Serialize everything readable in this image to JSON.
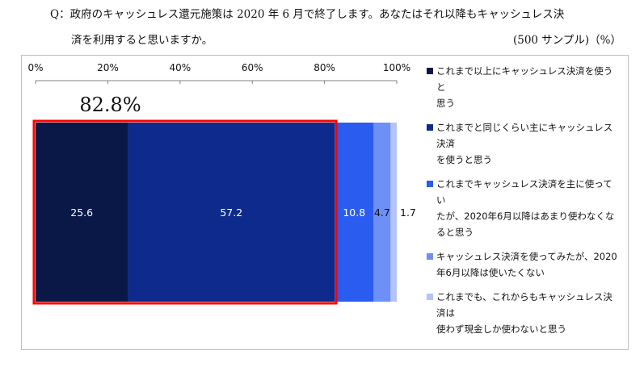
{
  "question": {
    "line1": "Q：政府のキャッシュレス還元施策は 2020 年 6 月で終了します。あなたはそれ以降もキャッシュレス決",
    "line2": "済を利用すると思いますか。",
    "sample_note": "(500 サンプル)（%）"
  },
  "highlight": {
    "label": "82.8%",
    "color": "#ff0000"
  },
  "chart_data": {
    "type": "bar",
    "orientation": "horizontal-stacked",
    "xlim": [
      0,
      100
    ],
    "x_ticks": [
      "0%",
      "20%",
      "40%",
      "60%",
      "80%",
      "100%"
    ],
    "series": [
      {
        "name": "これまで以上にキャッシュレス決済を使うと思う",
        "value": 25.6,
        "label": "25.6",
        "color": "#0a1848"
      },
      {
        "name": "これまでと同じくらい主にキャッシュレス決済を使うと思う",
        "value": 57.2,
        "label": "57.2",
        "color": "#0d2a8c"
      },
      {
        "name": "これまでキャッシュレス決済を主に使っていたが、2020年6月以降はあまり使わなくなると思う",
        "value": 10.8,
        "label": "10.8",
        "color": "#2a5cf0"
      },
      {
        "name": "キャッシュレス決済を使ってみたが、2020年6月以降は使いたくない",
        "value": 4.7,
        "label": "4.7",
        "color": "#6e8ff5"
      },
      {
        "name": "これまでも、これからもキャッシュレス決済は使わず現金しか使わないと思う",
        "value": 1.7,
        "label": "1.7",
        "color": "#b4c4f7"
      }
    ]
  },
  "legend": {
    "items": [
      {
        "lines": [
          "これまで以上にキャッシュレス決済を使うと",
          "思う"
        ],
        "color": "#0a1848"
      },
      {
        "lines": [
          "これまでと同じくらい主にキャッシュレス決済",
          "を使うと思う"
        ],
        "color": "#0d2a8c"
      },
      {
        "lines": [
          "これまでキャッシュレス決済を主に使ってい",
          "たが、2020年6月以降はあまり使わなくな",
          "ると思う"
        ],
        "color": "#2a5cf0"
      },
      {
        "lines": [
          "キャッシュレス決済を使ってみたが、2020",
          "年6月以降は使いたくない"
        ],
        "color": "#6e8ff5"
      },
      {
        "lines": [
          "これまでも、これからもキャッシュレス決済は",
          "使わず現金しか使わないと思う"
        ],
        "color": "#b4c4f7"
      }
    ]
  }
}
